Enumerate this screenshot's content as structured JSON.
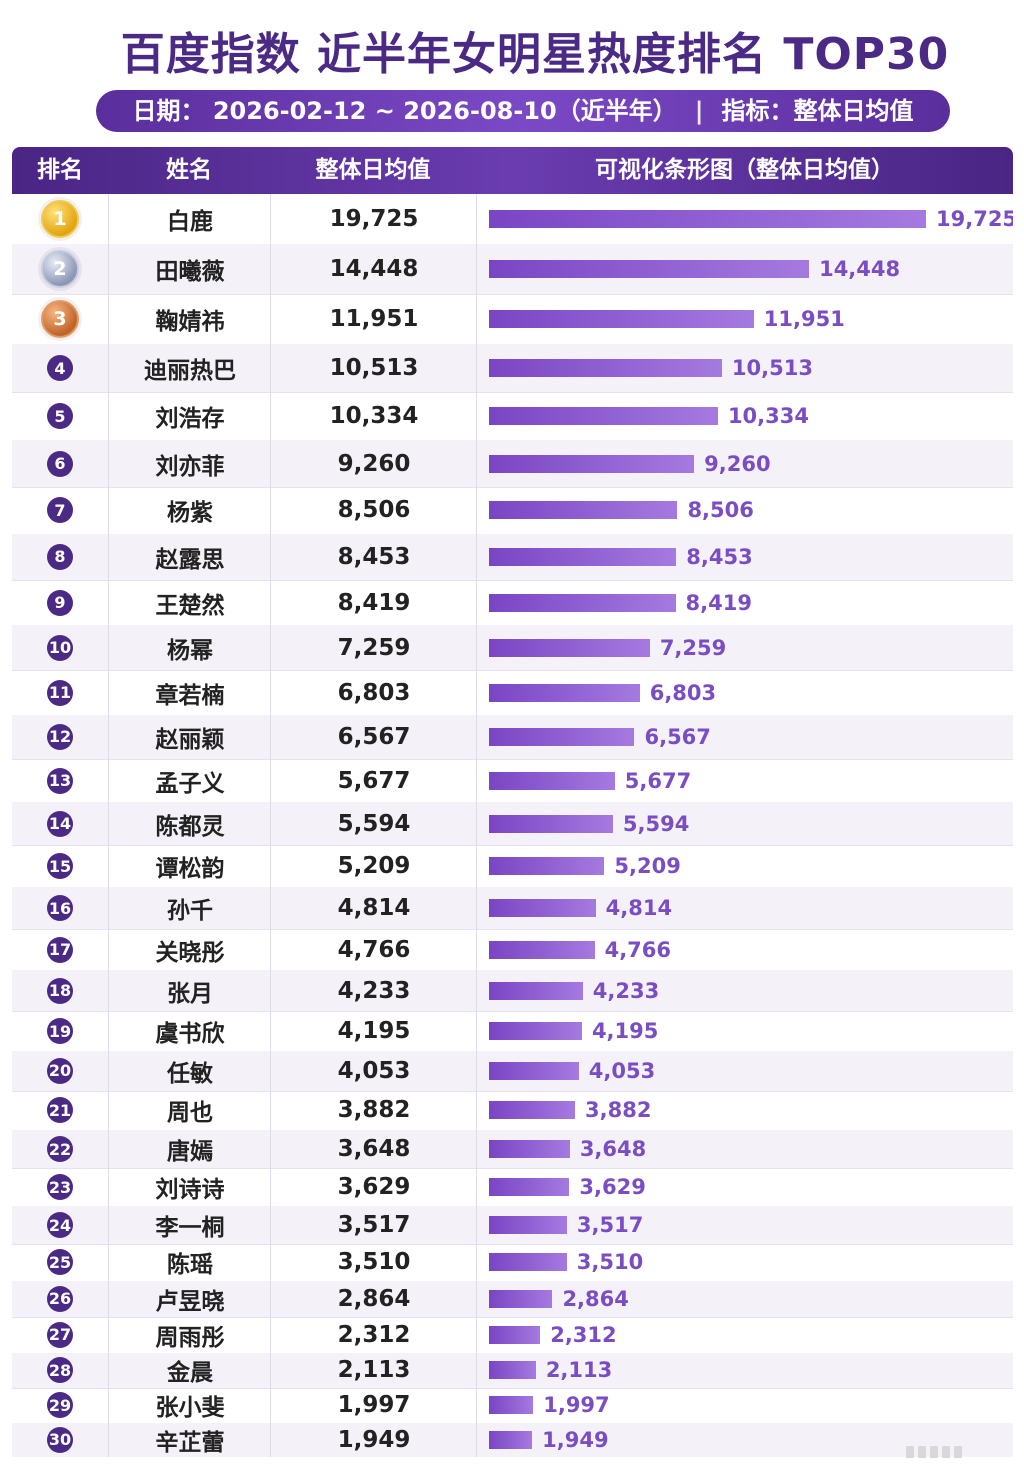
{
  "title": "百度指数 近半年女明星热度排名 TOP30",
  "subtitle": {
    "date": "日期： 2026-02-12 ~ 2026-08-10（近半年）",
    "separator": "|",
    "metric": "指标：整体日均值"
  },
  "colors": {
    "header": "#4b2a86",
    "bar": "#8a5ad2",
    "label": "#7a4ec2"
  },
  "chart_data": {
    "type": "bar",
    "orientation": "horizontal",
    "title": "百度指数 近半年女明星热度排名 TOP30",
    "columns": [
      "排名",
      "姓名",
      "整体日均值",
      "可视化条形图（整体日均值）"
    ],
    "xlim": [
      0,
      19725
    ],
    "ranks": [
      "1",
      "2",
      "3",
      "4",
      "5",
      "6",
      "7",
      "8",
      "9",
      "10",
      "11",
      "12",
      "13",
      "14",
      "15",
      "16",
      "17",
      "18",
      "19",
      "20",
      "21",
      "22",
      "23",
      "24",
      "25",
      "26",
      "27",
      "28",
      "29",
      "30"
    ],
    "categories": [
      "白鹿",
      "田曦薇",
      "鞠婧祎",
      "迪丽热巴",
      "刘浩存",
      "刘亦菲",
      "杨紫",
      "赵露思",
      "王楚然",
      "杨幂",
      "章若楠",
      "赵丽颖",
      "孟子义",
      "陈都灵",
      "谭松韵",
      "孙千",
      "关晓彤",
      "张月",
      "虞书欣",
      "任敏",
      "周也",
      "唐嫣",
      "刘诗诗",
      "李一桐",
      "陈瑶",
      "卢昱晓",
      "周雨彤",
      "金晨",
      "张小斐",
      "辛芷蕾"
    ],
    "values": [
      19725,
      14448,
      11951,
      10513,
      10334,
      9260,
      8506,
      8453,
      8419,
      7259,
      6803,
      6567,
      5677,
      5594,
      5209,
      4814,
      4766,
      4233,
      4195,
      4053,
      3882,
      3648,
      3629,
      3517,
      3510,
      2864,
      2312,
      2113,
      1997,
      1949
    ],
    "value_labels": [
      "19,725",
      "14,448",
      "11,951",
      "10,513",
      "10,334",
      "9,260",
      "8,506",
      "8,453",
      "8,419",
      "7,259",
      "6,803",
      "6,567",
      "5,677",
      "5,594",
      "5,209",
      "4,814",
      "4,766",
      "4,233",
      "4,195",
      "4,053",
      "3,882",
      "3,648",
      "3,629",
      "3,517",
      "3,510",
      "2,864",
      "2,312",
      "2,113",
      "1,997",
      "1,949"
    ]
  }
}
